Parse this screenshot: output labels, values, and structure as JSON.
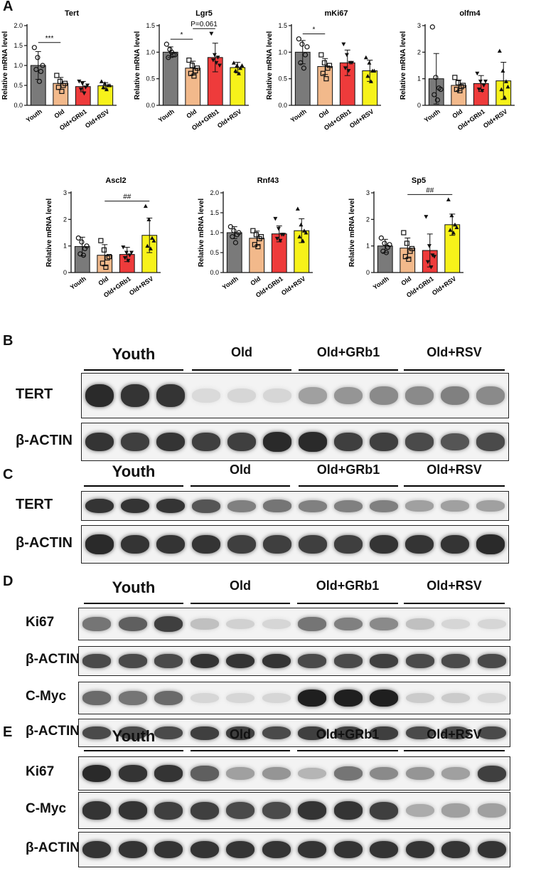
{
  "panels": {
    "A": "A",
    "B": "B",
    "C": "C",
    "D": "D",
    "E": "E"
  },
  "groups": [
    "Youth",
    "Old",
    "Old+GRb1",
    "Old+RSV"
  ],
  "colors": {
    "Youth": "#7a7a7a",
    "Old": "#f2b98b",
    "Old+GRb1": "#ee3b3b",
    "Old+RSV": "#f7f21a"
  },
  "ylabel": "Relative mRNA level",
  "chart_data": [
    {
      "type": "bar",
      "title": "Tert",
      "categories": [
        "Youth",
        "Old",
        "Old+GRb1",
        "Old+RSV"
      ],
      "values": [
        1.0,
        0.55,
        0.47,
        0.49
      ],
      "errors": [
        0.35,
        0.15,
        0.13,
        0.08
      ],
      "points": [
        [
          1.45,
          1.2,
          0.85,
          0.9,
          0.6,
          1.0
        ],
        [
          0.75,
          0.6,
          0.5,
          0.45,
          0.35,
          0.55
        ],
        [
          0.6,
          0.55,
          0.45,
          0.4,
          0.3,
          0.5
        ],
        [
          0.6,
          0.55,
          0.5,
          0.45,
          0.4,
          0.5
        ]
      ],
      "ylim": [
        0,
        2.0
      ],
      "yticks": [
        "0.0",
        "0.5",
        "1.0",
        "1.5",
        "2.0"
      ],
      "ylabel": "Relative mRNA level",
      "annotations": [
        {
          "text": "***",
          "from": 0,
          "to": 1
        }
      ]
    },
    {
      "type": "bar",
      "title": "Lgr5",
      "categories": [
        "Youth",
        "Old",
        "Old+GRb1",
        "Old+RSV"
      ],
      "values": [
        1.0,
        0.7,
        0.9,
        0.71
      ],
      "errors": [
        0.1,
        0.13,
        0.27,
        0.1
      ],
      "points": [
        [
          1.15,
          1.05,
          0.95,
          0.9,
          1.0,
          0.95
        ],
        [
          0.85,
          0.75,
          0.65,
          0.6,
          0.55,
          0.7
        ],
        [
          1.35,
          0.95,
          0.9,
          0.85,
          0.8,
          0.75
        ],
        [
          0.8,
          0.75,
          0.7,
          0.65,
          0.6,
          0.75
        ]
      ],
      "ylim": [
        0,
        1.5
      ],
      "yticks": [
        "0.0",
        "0.5",
        "1.0",
        "1.5"
      ],
      "ylabel": "Relative mRNA level",
      "annotations": [
        {
          "text": "*",
          "from": 0,
          "to": 1
        },
        {
          "text": "P=0.061",
          "from": 1,
          "to": 2
        }
      ]
    },
    {
      "type": "bar",
      "title": "mKi67",
      "categories": [
        "Youth",
        "Old",
        "Old+GRb1",
        "Old+RSV"
      ],
      "values": [
        1.0,
        0.73,
        0.8,
        0.65
      ],
      "errors": [
        0.22,
        0.15,
        0.24,
        0.2
      ],
      "points": [
        [
          1.25,
          1.15,
          0.95,
          0.8,
          0.7,
          1.1
        ],
        [
          0.95,
          0.8,
          0.7,
          0.6,
          0.5,
          0.75
        ],
        [
          1.15,
          0.95,
          0.8,
          0.7,
          0.65,
          0.8
        ],
        [
          0.9,
          0.8,
          0.65,
          0.55,
          0.45,
          0.65
        ]
      ],
      "ylim": [
        0,
        1.5
      ],
      "yticks": [
        "0.0",
        "0.5",
        "1.0",
        "1.5"
      ],
      "ylabel": "Relative mRNA level",
      "annotations": [
        {
          "text": "*",
          "from": 0,
          "to": 1
        }
      ]
    },
    {
      "type": "bar",
      "title": "olfm4",
      "categories": [
        "Youth",
        "Old",
        "Old+GRb1",
        "Old+RSV"
      ],
      "values": [
        1.0,
        0.75,
        0.82,
        0.92
      ],
      "errors": [
        0.95,
        0.2,
        0.3,
        0.7
      ],
      "points": [
        [
          2.95,
          1.05,
          0.65,
          0.4,
          0.2,
          0.6
        ],
        [
          1.05,
          0.85,
          0.7,
          0.6,
          0.55,
          0.75
        ],
        [
          1.2,
          0.9,
          0.75,
          0.6,
          0.55,
          0.9
        ],
        [
          2.05,
          1.3,
          0.9,
          0.6,
          0.3,
          0.7
        ]
      ],
      "ylim": [
        0,
        3
      ],
      "yticks": [
        "0",
        "1",
        "2",
        "3"
      ],
      "ylabel": "Relative mRNA level",
      "annotations": []
    },
    {
      "type": "bar",
      "title": "Ascl2",
      "categories": [
        "Youth",
        "Old",
        "Old+GRb1",
        "Old+RSV"
      ],
      "values": [
        0.98,
        0.65,
        0.68,
        1.4
      ],
      "errors": [
        0.35,
        0.4,
        0.27,
        0.65
      ],
      "points": [
        [
          1.3,
          1.15,
          0.9,
          0.7,
          0.65,
          1.0
        ],
        [
          1.2,
          0.85,
          0.55,
          0.35,
          0.2,
          0.6
        ],
        [
          0.95,
          0.75,
          0.65,
          0.55,
          0.45,
          0.75
        ],
        [
          2.5,
          2.0,
          1.3,
          1.0,
          0.9,
          1.2
        ]
      ],
      "ylim": [
        0,
        3
      ],
      "yticks": [
        "0",
        "1",
        "2",
        "3"
      ],
      "ylabel": "Relative mRNA level",
      "annotations": [
        {
          "text": "##",
          "from": 1,
          "to": 3
        }
      ]
    },
    {
      "type": "bar",
      "title": "Rnf43",
      "categories": [
        "Youth",
        "Old",
        "Old+GRb1",
        "Old+RSV"
      ],
      "values": [
        1.0,
        0.86,
        0.97,
        1.05
      ],
      "errors": [
        0.15,
        0.18,
        0.2,
        0.3
      ],
      "points": [
        [
          1.15,
          1.05,
          0.95,
          0.9,
          0.75,
          1.0
        ],
        [
          1.05,
          0.95,
          0.85,
          0.7,
          0.65,
          0.9
        ],
        [
          1.35,
          1.1,
          0.95,
          0.85,
          0.8,
          0.95
        ],
        [
          1.6,
          1.2,
          1.05,
          0.9,
          0.8,
          1.0
        ]
      ],
      "ylim": [
        0,
        2.0
      ],
      "yticks": [
        "0.0",
        "0.5",
        "1.0",
        "1.5",
        "2.0"
      ],
      "ylabel": "Relative mRNA level",
      "annotations": []
    },
    {
      "type": "bar",
      "title": "Sp5",
      "categories": [
        "Youth",
        "Old",
        "Old+GRb1",
        "Old+RSV"
      ],
      "values": [
        1.0,
        0.92,
        0.83,
        1.8
      ],
      "errors": [
        0.25,
        0.38,
        0.62,
        0.4
      ],
      "points": [
        [
          1.3,
          1.1,
          0.95,
          0.8,
          0.75,
          1.05
        ],
        [
          1.5,
          1.1,
          0.8,
          0.6,
          0.5,
          0.9
        ],
        [
          2.1,
          1.0,
          0.65,
          0.4,
          0.2,
          0.6
        ],
        [
          2.75,
          2.15,
          1.8,
          1.6,
          1.5,
          1.7
        ]
      ],
      "ylim": [
        0,
        3
      ],
      "yticks": [
        "0",
        "1",
        "2",
        "3"
      ],
      "ylabel": "Relative mRNA level",
      "annotations": [
        {
          "text": "##",
          "from": 1,
          "to": 3
        }
      ]
    }
  ],
  "blots": {
    "B": {
      "rows": [
        "TERT",
        "β-ACTIN"
      ],
      "tert_intensity": [
        0.9,
        0.85,
        0.85,
        0.08,
        0.1,
        0.1,
        0.35,
        0.4,
        0.45,
        0.45,
        0.5,
        0.45
      ]
    },
    "C": {
      "rows": [
        "TERT",
        "β-ACTIN"
      ]
    },
    "D": {
      "rows": [
        "Ki67",
        "β-ACTIN",
        "C-Myc",
        "β-ACTIN"
      ]
    },
    "E": {
      "rows": [
        "Ki67",
        "C-Myc",
        "β-ACTIN"
      ]
    }
  }
}
